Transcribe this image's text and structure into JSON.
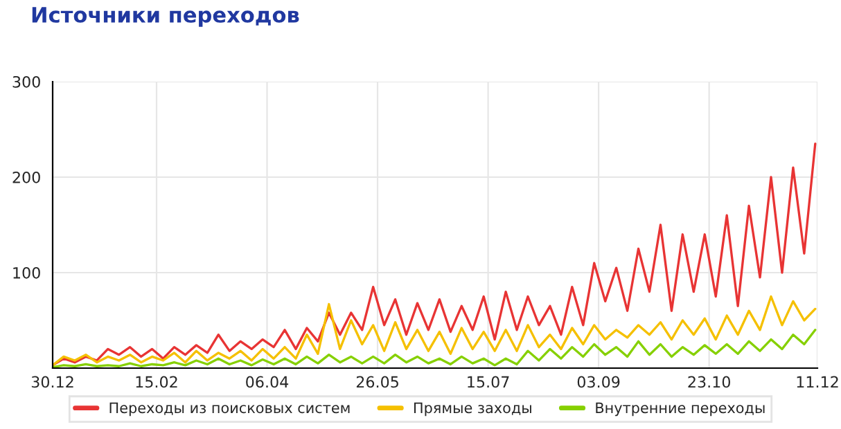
{
  "chart_data": {
    "type": "line",
    "title": "Источники переходов",
    "x": [
      "2012-12-30",
      "2013-01-04",
      "2013-01-09",
      "2013-01-14",
      "2013-01-19",
      "2013-01-24",
      "2013-01-29",
      "2013-02-03",
      "2013-02-08",
      "2013-02-13",
      "2013-02-18",
      "2013-02-23",
      "2013-02-28",
      "2013-03-05",
      "2013-03-10",
      "2013-03-15",
      "2013-03-20",
      "2013-03-25",
      "2013-03-30",
      "2013-04-04",
      "2013-04-09",
      "2013-04-14",
      "2013-04-19",
      "2013-04-24",
      "2013-04-29",
      "2013-05-04",
      "2013-05-09",
      "2013-05-14",
      "2013-05-19",
      "2013-05-24",
      "2013-05-29",
      "2013-06-03",
      "2013-06-08",
      "2013-06-13",
      "2013-06-18",
      "2013-06-23",
      "2013-06-28",
      "2013-07-03",
      "2013-07-08",
      "2013-07-13",
      "2013-07-18",
      "2013-07-23",
      "2013-07-28",
      "2013-08-02",
      "2013-08-07",
      "2013-08-12",
      "2013-08-17",
      "2013-08-22",
      "2013-08-27",
      "2013-09-01",
      "2013-09-06",
      "2013-09-11",
      "2013-09-16",
      "2013-09-21",
      "2013-09-26",
      "2013-10-01",
      "2013-10-06",
      "2013-10-11",
      "2013-10-16",
      "2013-10-21",
      "2013-10-26",
      "2013-10-31",
      "2013-11-05",
      "2013-11-10",
      "2013-11-15",
      "2013-11-20",
      "2013-11-25",
      "2013-11-30",
      "2013-12-05",
      "2013-12-10"
    ],
    "series": [
      {
        "name": "Переходы из поисковых систем",
        "color": "#e83434",
        "values": [
          3,
          10,
          6,
          12,
          8,
          20,
          14,
          22,
          12,
          20,
          10,
          22,
          14,
          24,
          16,
          35,
          18,
          28,
          20,
          30,
          22,
          40,
          20,
          42,
          28,
          58,
          35,
          58,
          40,
          85,
          45,
          72,
          35,
          68,
          40,
          72,
          38,
          65,
          40,
          75,
          30,
          80,
          40,
          75,
          45,
          65,
          35,
          85,
          45,
          110,
          70,
          105,
          60,
          125,
          80,
          150,
          60,
          140,
          80,
          140,
          75,
          160,
          65,
          170,
          95,
          200,
          100,
          210,
          120,
          235
        ]
      },
      {
        "name": "Прямые заходы",
        "color": "#f5c000",
        "values": [
          3,
          12,
          8,
          14,
          6,
          12,
          8,
          14,
          6,
          12,
          8,
          16,
          6,
          18,
          8,
          16,
          10,
          18,
          8,
          20,
          10,
          22,
          10,
          35,
          15,
          67,
          20,
          50,
          25,
          45,
          18,
          48,
          20,
          40,
          18,
          38,
          15,
          42,
          20,
          38,
          18,
          40,
          18,
          45,
          22,
          35,
          20,
          42,
          25,
          45,
          30,
          40,
          32,
          45,
          35,
          48,
          30,
          50,
          35,
          52,
          30,
          55,
          35,
          60,
          40,
          75,
          45,
          70,
          50,
          62
        ]
      },
      {
        "name": "Внутренние переходы",
        "color": "#86d000",
        "values": [
          1,
          3,
          2,
          4,
          2,
          3,
          2,
          5,
          2,
          4,
          3,
          6,
          3,
          8,
          4,
          10,
          4,
          8,
          3,
          9,
          4,
          10,
          4,
          12,
          5,
          14,
          6,
          12,
          5,
          12,
          5,
          14,
          6,
          12,
          5,
          10,
          4,
          12,
          5,
          10,
          3,
          10,
          4,
          18,
          8,
          20,
          10,
          22,
          12,
          25,
          14,
          22,
          12,
          28,
          14,
          25,
          12,
          22,
          14,
          24,
          15,
          25,
          15,
          28,
          18,
          30,
          20,
          35,
          25,
          40
        ]
      }
    ],
    "xlim": [
      "2012-12-30",
      "2013-12-11"
    ],
    "xticks": [
      {
        "value": "2012-12-30",
        "label": "30.12"
      },
      {
        "value": "2013-02-15",
        "label": "15.02"
      },
      {
        "value": "2013-04-06",
        "label": "06.04"
      },
      {
        "value": "2013-05-26",
        "label": "26.05"
      },
      {
        "value": "2013-07-15",
        "label": "15.07"
      },
      {
        "value": "2013-09-03",
        "label": "03.09"
      },
      {
        "value": "2013-10-23",
        "label": "23.10"
      },
      {
        "value": "2013-12-11",
        "label": "11.12"
      }
    ],
    "ylim": [
      0,
      300
    ],
    "yticks": [
      100,
      200,
      300
    ],
    "grid": true,
    "legend": "bottom",
    "marker": "none",
    "line_style": "solid"
  }
}
